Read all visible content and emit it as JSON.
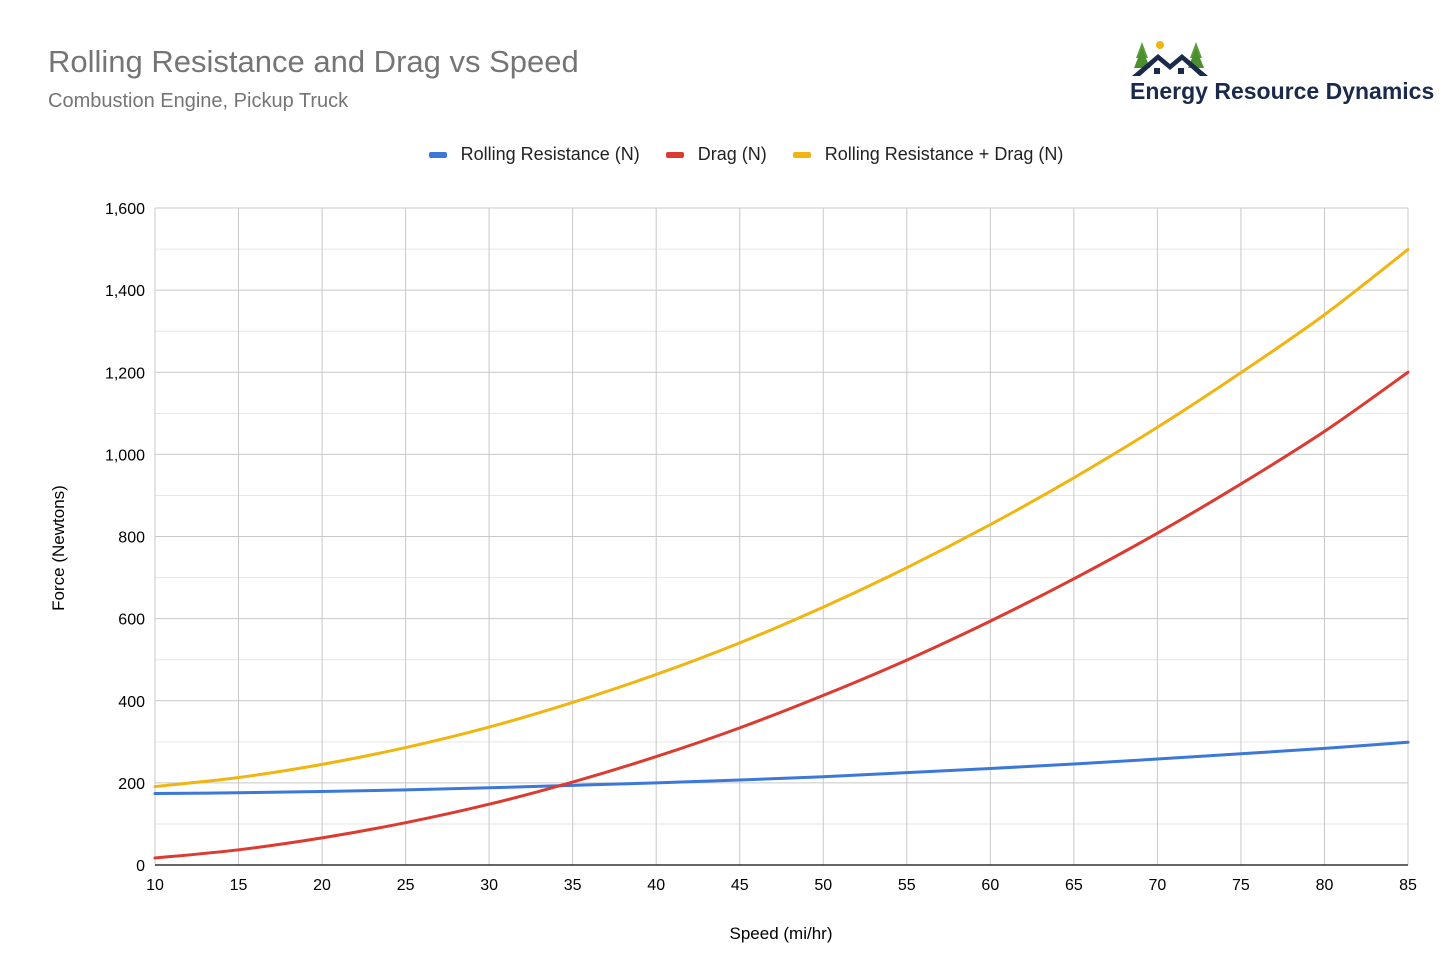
{
  "header": {
    "title": "Rolling Resistance and Drag vs Speed",
    "subtitle": "Combustion Engine, Pickup Truck"
  },
  "logo": {
    "text": "Energy Resource Dynamics",
    "icon": "house-trees-sun-logo"
  },
  "colors": {
    "rolling": "#3c78d8",
    "drag": "#db3b30",
    "total": "#f0b511",
    "grid": "#cccccc"
  },
  "chart_data": {
    "type": "line",
    "title": "Rolling Resistance and Drag vs Speed",
    "subtitle": "Combustion Engine, Pickup Truck",
    "xlabel": "Speed (mi/hr)",
    "ylabel": "Force (Newtons)",
    "xlim": [
      10,
      85
    ],
    "ylim": [
      0,
      1600
    ],
    "x_ticks": [
      10,
      15,
      20,
      25,
      30,
      35,
      40,
      45,
      50,
      55,
      60,
      65,
      70,
      75,
      80,
      85
    ],
    "y_ticks": [
      0,
      200,
      400,
      600,
      800,
      1000,
      1200,
      1400,
      1600
    ],
    "y_tick_labels": [
      "0",
      "200",
      "400",
      "600",
      "800",
      "1,000",
      "1,200",
      "1,400",
      "1,600"
    ],
    "grid": true,
    "legend_position": "top-center",
    "x": [
      10,
      15,
      20,
      25,
      30,
      35,
      40,
      45,
      50,
      55,
      60,
      65,
      70,
      75,
      80,
      85
    ],
    "series": [
      {
        "name": "Rolling Resistance (N)",
        "color": "#3c78d8",
        "values": [
          174,
          176,
          179,
          183,
          188,
          194,
          200,
          207,
          215,
          225,
          235,
          246,
          258,
          271,
          284,
          299
        ]
      },
      {
        "name": "Drag (N)",
        "color": "#db3b30",
        "values": [
          17,
          37,
          66,
          103,
          148,
          202,
          264,
          334,
          413,
          499,
          594,
          697,
          808,
          928,
          1056,
          1200
        ]
      },
      {
        "name": "Rolling Resistance + Drag (N)",
        "color": "#f0b511",
        "values": [
          191,
          213,
          245,
          286,
          336,
          396,
          464,
          541,
          628,
          724,
          829,
          943,
          1066,
          1199,
          1340,
          1499
        ]
      }
    ]
  }
}
